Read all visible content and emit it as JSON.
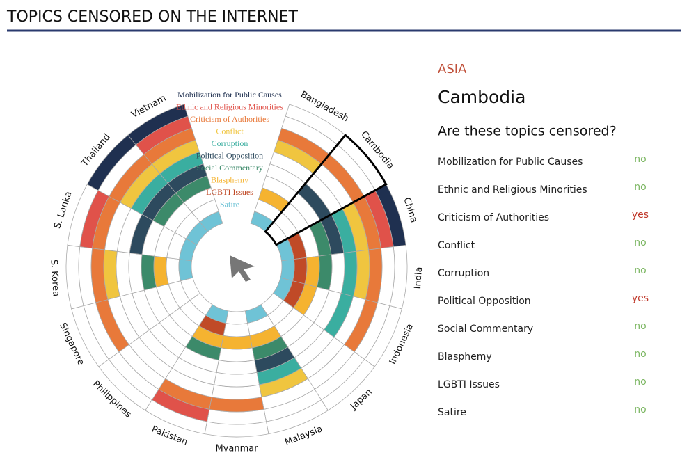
{
  "title": "TOPICS CENSORED ON THE INTERNET",
  "chart": {
    "topics": [
      {
        "name": "Mobilization for Public Causes",
        "color": "#1f3050"
      },
      {
        "name": "Ethnic and Religious Minorities",
        "color": "#e0524a"
      },
      {
        "name": "Criticism of Authorities",
        "color": "#e8793a"
      },
      {
        "name": "Conflict",
        "color": "#f0c53f"
      },
      {
        "name": "Corruption",
        "color": "#3aaea0"
      },
      {
        "name": "Political Opposition",
        "color": "#2d4a5e"
      },
      {
        "name": "Social Commentary",
        "color": "#3c8a6a"
      },
      {
        "name": "Blasphemy",
        "color": "#f5b330"
      },
      {
        "name": "LGBTI Issues",
        "color": "#c04a27"
      },
      {
        "name": "Satire",
        "color": "#6fc3d6"
      }
    ],
    "countries": [
      "Bangladesh",
      "Cambodia",
      "China",
      "India",
      "Indonesia",
      "Japan",
      "Malaysia",
      "Myanmar",
      "Pakistan",
      "Philippines",
      "Singapore",
      "S. Korea",
      "S. Lanka",
      "Thailand",
      "Vietnam"
    ],
    "censored": [
      [
        0,
        0,
        1,
        1,
        0,
        0,
        0,
        1,
        0,
        1
      ],
      [
        0,
        0,
        1,
        0,
        0,
        1,
        0,
        0,
        0,
        0
      ],
      [
        1,
        1,
        1,
        1,
        1,
        1,
        1,
        0,
        1,
        1
      ],
      [
        0,
        0,
        1,
        1,
        1,
        0,
        1,
        1,
        1,
        1
      ],
      [
        0,
        0,
        1,
        0,
        1,
        0,
        0,
        1,
        1,
        1
      ],
      [
        0,
        0,
        0,
        0,
        0,
        0,
        0,
        0,
        0,
        0
      ],
      [
        0,
        0,
        0,
        1,
        1,
        1,
        1,
        1,
        0,
        1
      ],
      [
        0,
        0,
        1,
        0,
        0,
        0,
        0,
        1,
        0,
        0
      ],
      [
        0,
        1,
        1,
        0,
        0,
        0,
        1,
        1,
        1,
        1
      ],
      [
        0,
        0,
        0,
        0,
        0,
        0,
        0,
        0,
        0,
        0
      ],
      [
        0,
        0,
        1,
        0,
        0,
        0,
        0,
        0,
        0,
        0
      ],
      [
        0,
        0,
        1,
        1,
        0,
        0,
        1,
        1,
        0,
        1
      ],
      [
        0,
        1,
        1,
        0,
        0,
        1,
        0,
        0,
        0,
        1
      ],
      [
        1,
        0,
        1,
        1,
        1,
        1,
        1,
        0,
        0,
        1
      ],
      [
        1,
        1,
        1,
        1,
        1,
        1,
        1,
        0,
        0,
        1
      ]
    ]
  },
  "detail": {
    "region": "ASIA",
    "country": "Cambodia",
    "question": "Are these topics censored?",
    "answers": [
      "no",
      "no",
      "yes",
      "no",
      "no",
      "yes",
      "no",
      "no",
      "no",
      "no"
    ]
  }
}
